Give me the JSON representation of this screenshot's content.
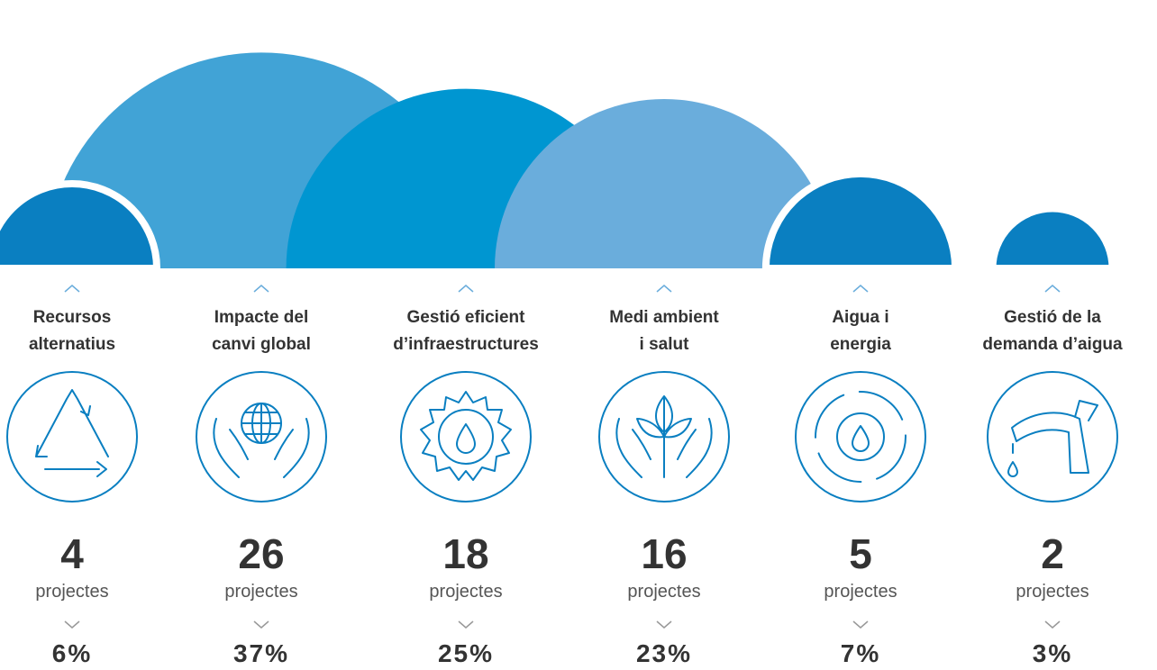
{
  "chart_data": {
    "type": "semicircle",
    "categories": [
      "Recursos\nalternatius",
      "Impacte del\ncanvi global",
      "Gestió eficient\nd’infraestructures",
      "Medi ambient\ni salut",
      "Aigua i\nenergia",
      "Gestió de la\ndemanda d’aigua"
    ],
    "values": [
      4,
      26,
      18,
      16,
      5,
      2
    ],
    "unit": "projectes",
    "shares": [
      "6%",
      "37%",
      "25%",
      "23%",
      "7%",
      "3%"
    ],
    "colors": [
      "#0a7fc1",
      "#41a3d6",
      "#0096d1",
      "#6aaddc",
      "#0a7fc1",
      "#0a7fc1"
    ]
  }
}
